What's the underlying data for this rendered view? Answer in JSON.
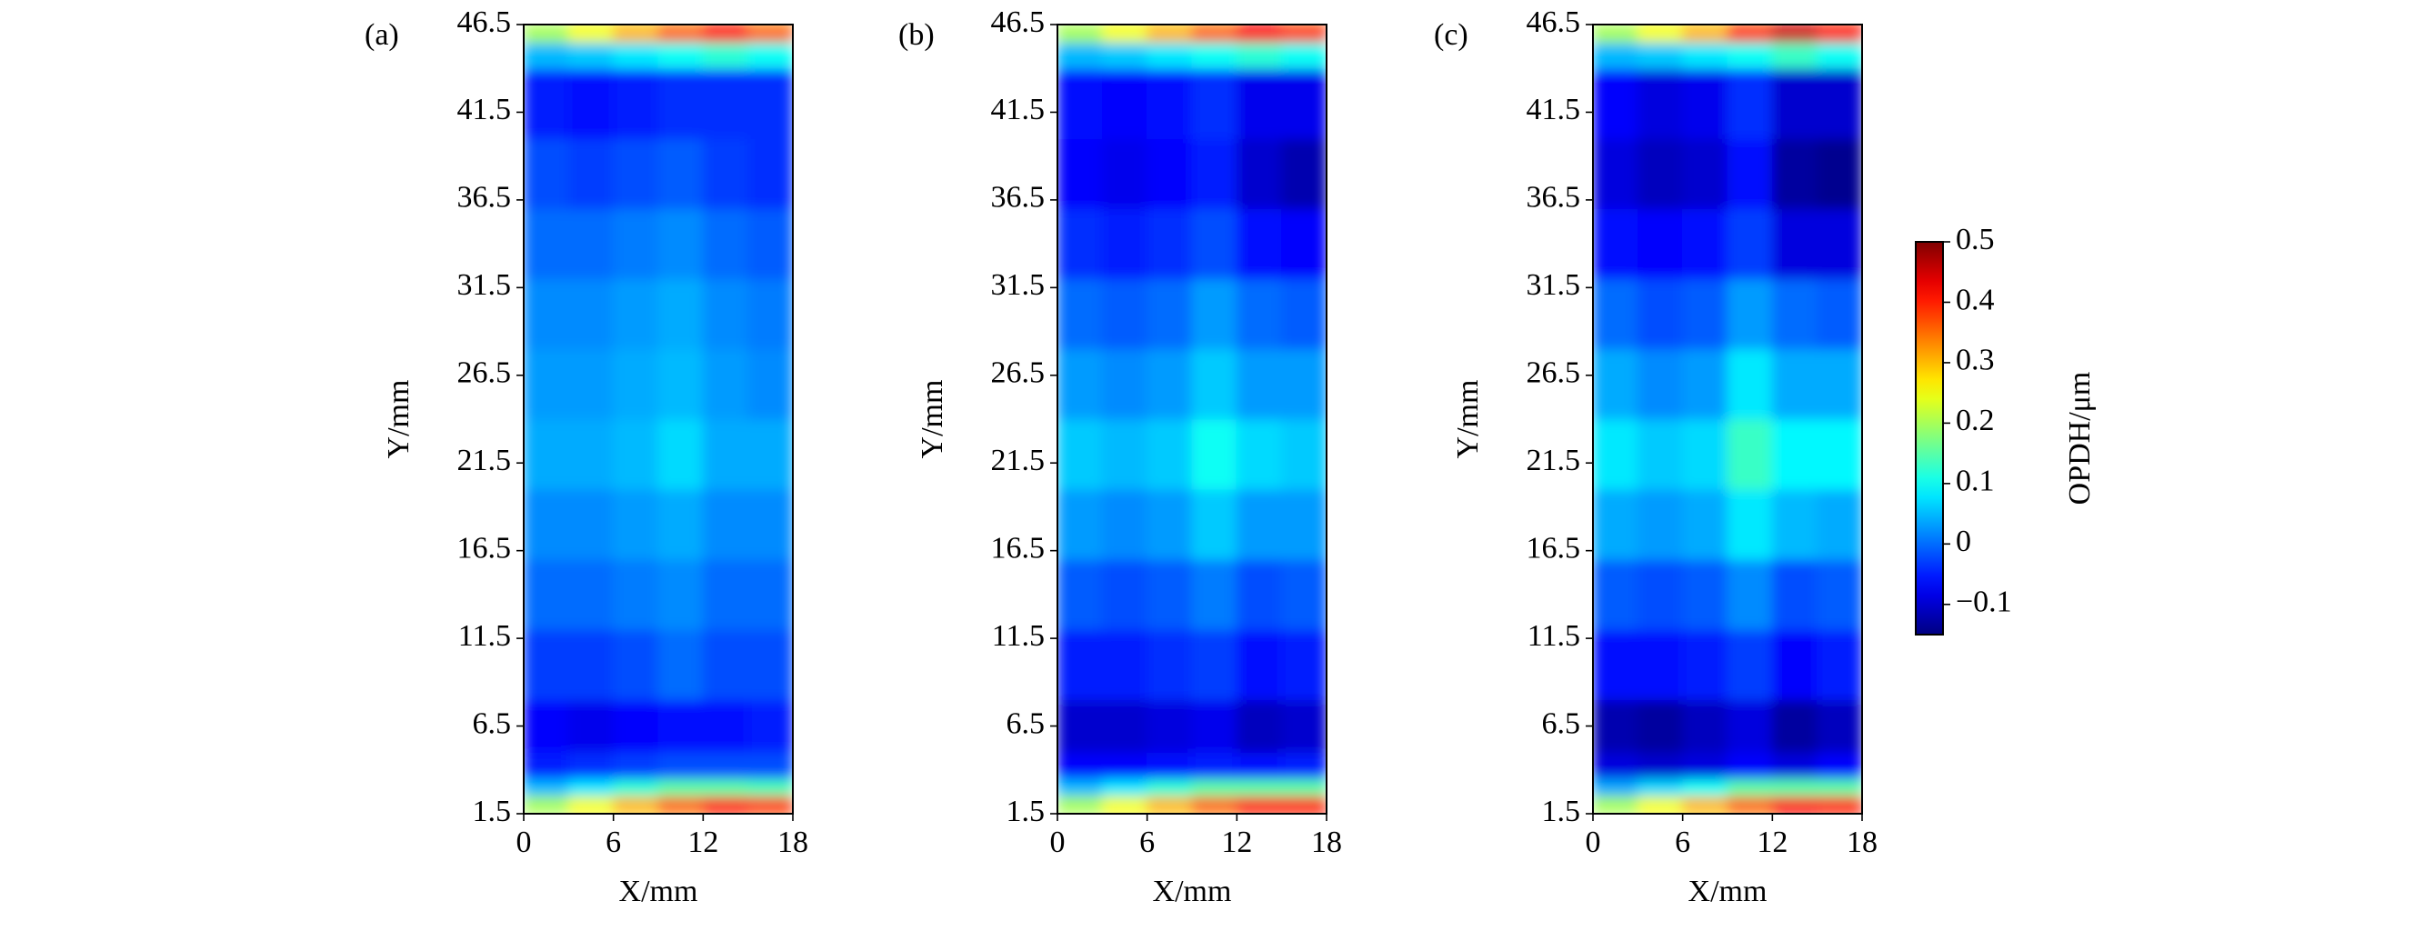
{
  "chart_data": {
    "type": "heatmap",
    "xlabel": "X/mm",
    "ylabel": "Y/mm",
    "xlim": [
      0,
      18
    ],
    "ylim": [
      1.5,
      46.5
    ],
    "xticks": [
      0,
      6,
      12,
      18
    ],
    "yticks": [
      1.5,
      6.5,
      11.5,
      16.5,
      21.5,
      26.5,
      31.5,
      36.5,
      41.5,
      46.5
    ],
    "x_edges": [
      0,
      3,
      6,
      9,
      12,
      15,
      18
    ],
    "y_edges": [
      1.5,
      2.5,
      3.5,
      5,
      8,
      12,
      16,
      20,
      24,
      28,
      32,
      36,
      40,
      44,
      45.5,
      46.5
    ],
    "colormap": "jet",
    "panels": [
      {
        "label": "(a)",
        "z": [
          [
            0.2,
            0.25,
            0.3,
            0.35,
            0.4,
            0.38
          ],
          [
            0.05,
            0.08,
            0.12,
            0.15,
            0.15,
            0.14
          ],
          [
            -0.05,
            -0.04,
            -0.03,
            -0.02,
            -0.02,
            -0.02
          ],
          [
            -0.07,
            -0.08,
            -0.07,
            -0.06,
            -0.06,
            -0.05
          ],
          [
            -0.03,
            -0.03,
            -0.02,
            0.0,
            -0.02,
            -0.02
          ],
          [
            0.0,
            0.0,
            0.01,
            0.02,
            0.0,
            0.0
          ],
          [
            0.02,
            0.02,
            0.03,
            0.04,
            0.02,
            0.02
          ],
          [
            0.04,
            0.04,
            0.05,
            0.07,
            0.04,
            0.04
          ],
          [
            0.03,
            0.03,
            0.04,
            0.05,
            0.03,
            0.02
          ],
          [
            0.02,
            0.02,
            0.03,
            0.04,
            0.02,
            0.01
          ],
          [
            0.0,
            0.0,
            0.01,
            0.02,
            0.0,
            -0.01
          ],
          [
            -0.02,
            -0.03,
            -0.02,
            -0.01,
            -0.03,
            -0.04
          ],
          [
            -0.05,
            -0.06,
            -0.05,
            -0.04,
            -0.04,
            -0.04
          ],
          [
            0.05,
            0.06,
            0.08,
            0.1,
            0.12,
            0.1
          ],
          [
            0.2,
            0.25,
            0.3,
            0.35,
            0.4,
            0.35
          ]
        ]
      },
      {
        "label": "(b)",
        "z": [
          [
            0.2,
            0.25,
            0.3,
            0.35,
            0.4,
            0.4
          ],
          [
            0.05,
            0.08,
            0.12,
            0.15,
            0.15,
            0.15
          ],
          [
            -0.07,
            -0.07,
            -0.06,
            -0.05,
            -0.06,
            -0.05
          ],
          [
            -0.1,
            -0.1,
            -0.09,
            -0.08,
            -0.11,
            -0.1
          ],
          [
            -0.05,
            -0.05,
            -0.04,
            -0.03,
            -0.06,
            -0.05
          ],
          [
            -0.01,
            -0.02,
            -0.01,
            0.01,
            -0.02,
            -0.01
          ],
          [
            0.03,
            0.02,
            0.03,
            0.06,
            0.03,
            0.03
          ],
          [
            0.06,
            0.05,
            0.06,
            0.1,
            0.07,
            0.06
          ],
          [
            0.03,
            0.02,
            0.03,
            0.06,
            0.03,
            0.03
          ],
          [
            0.0,
            -0.01,
            0.0,
            0.03,
            0.0,
            -0.01
          ],
          [
            -0.04,
            -0.05,
            -0.04,
            -0.02,
            -0.06,
            -0.07
          ],
          [
            -0.07,
            -0.08,
            -0.07,
            -0.05,
            -0.1,
            -0.12
          ],
          [
            -0.06,
            -0.07,
            -0.06,
            -0.04,
            -0.08,
            -0.08
          ],
          [
            0.05,
            0.06,
            0.08,
            0.1,
            0.12,
            0.1
          ],
          [
            0.2,
            0.25,
            0.3,
            0.35,
            0.42,
            0.38
          ]
        ]
      },
      {
        "label": "(c)",
        "z": [
          [
            0.2,
            0.25,
            0.3,
            0.35,
            0.42,
            0.4
          ],
          [
            0.04,
            0.07,
            0.1,
            0.15,
            0.15,
            0.15
          ],
          [
            -0.09,
            -0.1,
            -0.09,
            -0.07,
            -0.09,
            -0.07
          ],
          [
            -0.12,
            -0.13,
            -0.11,
            -0.09,
            -0.13,
            -0.11
          ],
          [
            -0.06,
            -0.06,
            -0.05,
            -0.03,
            -0.07,
            -0.05
          ],
          [
            -0.01,
            -0.02,
            -0.01,
            0.02,
            -0.02,
            -0.01
          ],
          [
            0.04,
            0.03,
            0.04,
            0.08,
            0.05,
            0.04
          ],
          [
            0.08,
            0.06,
            0.07,
            0.13,
            0.09,
            0.09
          ],
          [
            0.04,
            0.02,
            0.03,
            0.08,
            0.04,
            0.04
          ],
          [
            0.0,
            -0.02,
            -0.01,
            0.03,
            0.0,
            -0.01
          ],
          [
            -0.06,
            -0.07,
            -0.06,
            -0.03,
            -0.09,
            -0.09
          ],
          [
            -0.09,
            -0.11,
            -0.1,
            -0.06,
            -0.13,
            -0.14
          ],
          [
            -0.07,
            -0.09,
            -0.08,
            -0.04,
            -0.1,
            -0.1
          ],
          [
            0.05,
            0.06,
            0.08,
            0.1,
            0.13,
            0.1
          ],
          [
            0.2,
            0.25,
            0.3,
            0.38,
            0.45,
            0.4
          ]
        ]
      }
    ],
    "colorbar": {
      "label": "OPDH/μm",
      "clim": [
        -0.15,
        0.5
      ],
      "ticks": [
        {
          "value": -0.1,
          "label": "−0.1"
        },
        0,
        0.1,
        0.2,
        0.3,
        0.4,
        0.5
      ]
    }
  }
}
